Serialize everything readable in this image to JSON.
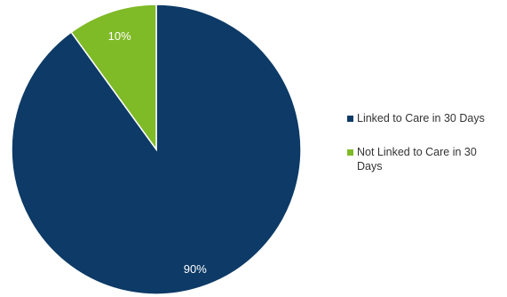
{
  "colors": {
    "linked": "#0d3a66",
    "not_linked": "#7fba27",
    "background": "#ffffff",
    "slice_border": "#ffffff",
    "label_text": "#ffffff"
  },
  "chart_data": {
    "type": "pie",
    "categories": [
      "Linked to Care in 30 Days",
      "Not Linked to Care in 30 Days"
    ],
    "values": [
      90,
      10
    ],
    "data_labels": [
      "90%",
      "10%"
    ],
    "title": "",
    "legend_position": "right"
  },
  "legend": {
    "items": [
      {
        "label": "Linked to Care in 30 Days",
        "color": "#0d3a66"
      },
      {
        "label": "Not Linked to Care in 30 Days",
        "color": "#7fba27"
      }
    ]
  }
}
